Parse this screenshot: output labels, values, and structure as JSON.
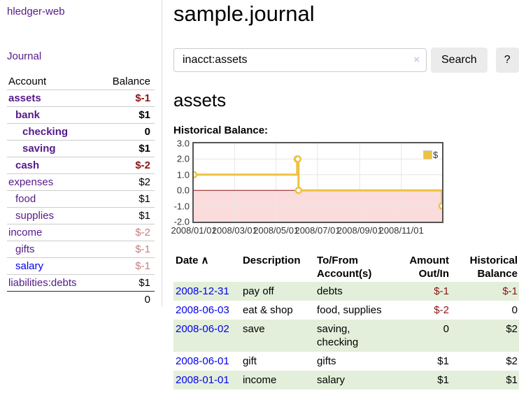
{
  "sidebar": {
    "brand": "hledger-web",
    "journal_link": "Journal",
    "accounts_header": {
      "account": "Account",
      "balance": "Balance"
    },
    "accounts": [
      {
        "name": "assets",
        "level": 1,
        "bold": true,
        "balance": "$-1",
        "balance_style": "negative",
        "link_color": "purple"
      },
      {
        "name": "bank",
        "level": 2,
        "bold": true,
        "balance": "$1",
        "balance_style": "normal",
        "link_color": "purple"
      },
      {
        "name": "checking",
        "level": 3,
        "bold": true,
        "balance": "0",
        "balance_style": "normal",
        "link_color": "purple"
      },
      {
        "name": "saving",
        "level": 3,
        "bold": true,
        "balance": "$1",
        "balance_style": "normal",
        "link_color": "purple"
      },
      {
        "name": "cash",
        "level": 2,
        "bold": true,
        "balance": "$-2",
        "balance_style": "negative",
        "link_color": "purple"
      },
      {
        "name": "expenses",
        "level": 1,
        "bold": false,
        "balance": "$2",
        "balance_style": "normal",
        "link_color": "purple"
      },
      {
        "name": "food",
        "level": 2,
        "bold": false,
        "balance": "$1",
        "balance_style": "normal",
        "link_color": "purple"
      },
      {
        "name": "supplies",
        "level": 2,
        "bold": false,
        "balance": "$1",
        "balance_style": "normal",
        "link_color": "purple"
      },
      {
        "name": "income",
        "level": 1,
        "bold": false,
        "balance": "$-2",
        "balance_style": "negative-soft",
        "link_color": "purple"
      },
      {
        "name": "gifts",
        "level": 2,
        "bold": false,
        "balance": "$-1",
        "balance_style": "negative-soft",
        "link_color": "purple"
      },
      {
        "name": "salary",
        "level": 2,
        "bold": false,
        "balance": "$-1",
        "balance_style": "negative-soft",
        "link_color": "blue"
      },
      {
        "name": "liabilities:debts",
        "level": 1,
        "bold": false,
        "balance": "$1",
        "balance_style": "normal",
        "link_color": "purple"
      }
    ],
    "total": "0"
  },
  "main": {
    "title": "sample.journal",
    "search": {
      "value": "inacct:assets",
      "button_label": "Search",
      "help_label": "?"
    },
    "account_heading": "assets"
  },
  "icons": {
    "clear": "×",
    "sort_asc": "∧"
  },
  "chart_data": {
    "type": "line",
    "title": "Historical Balance:",
    "legend": {
      "label": "$",
      "position": "top-right"
    },
    "series": [
      {
        "name": "$",
        "color": "#edc240",
        "step": true,
        "points": [
          [
            "2008-01-01",
            1
          ],
          [
            "2008-06-01",
            2
          ],
          [
            "2008-06-02",
            2
          ],
          [
            "2008-06-03",
            0
          ],
          [
            "2008-12-31",
            -1
          ]
        ]
      }
    ],
    "x_range": [
      "2008-01-01",
      "2008-12-31"
    ],
    "ylim": [
      -2,
      3
    ],
    "y_ticks": [
      3.0,
      2.0,
      1.0,
      0.0,
      -1.0,
      -2.0
    ],
    "x_ticks": [
      {
        "date": "2008-01-01",
        "label": "2008/01/01"
      },
      {
        "date": "2008-03-01",
        "label": "2008/03/01"
      },
      {
        "date": "2008-05-01",
        "label": "2008/05/01"
      },
      {
        "date": "2008-07-01",
        "label": "2008/07/01"
      },
      {
        "date": "2008-09-01",
        "label": "2008/09/01"
      },
      {
        "date": "2008-11-01",
        "label": "2008/11/01"
      }
    ],
    "grid": true,
    "grid_color": "#e6e6e6",
    "negative_region_color": "#fbdcdc",
    "zero_line_color": "#951414",
    "border_color": "#545454"
  },
  "register": {
    "columns": [
      {
        "id": "date",
        "line1": "Date",
        "line2": "",
        "align": "left",
        "sortable": true
      },
      {
        "id": "description",
        "line1": "Description",
        "line2": "",
        "align": "left",
        "sortable": false
      },
      {
        "id": "accounts",
        "line1": "To/From",
        "line2": "Account(s)",
        "align": "left",
        "sortable": false
      },
      {
        "id": "amount",
        "line1": "Amount",
        "line2": "Out/In",
        "align": "right",
        "sortable": false
      },
      {
        "id": "balance",
        "line1": "Historical",
        "line2": "Balance",
        "align": "right",
        "sortable": false
      }
    ],
    "rows": [
      {
        "date": "2008-12-31",
        "description": "pay off",
        "accounts": "debts",
        "amount": "$-1",
        "amount_negative": true,
        "balance": "$-1",
        "balance_negative": true
      },
      {
        "date": "2008-06-03",
        "description": "eat & shop",
        "accounts": "food, supplies",
        "amount": "$-2",
        "amount_negative": true,
        "balance": "0",
        "balance_negative": false
      },
      {
        "date": "2008-06-02",
        "description": "save",
        "accounts": "saving, checking",
        "amount": "0",
        "amount_negative": false,
        "balance": "$2",
        "balance_negative": false
      },
      {
        "date": "2008-06-01",
        "description": "gift",
        "accounts": "gifts",
        "amount": "$1",
        "amount_negative": false,
        "balance": "$2",
        "balance_negative": false
      },
      {
        "date": "2008-01-01",
        "description": "income",
        "accounts": "salary",
        "amount": "$1",
        "amount_negative": false,
        "balance": "$1",
        "balance_negative": false
      }
    ]
  },
  "colors": {
    "link_purple": "#551a8b",
    "link_blue": "#0000ee",
    "negative": "#8b1414",
    "negative_soft": "#c58080",
    "row_green": "#e3efda",
    "series_yellow": "#edc240"
  }
}
